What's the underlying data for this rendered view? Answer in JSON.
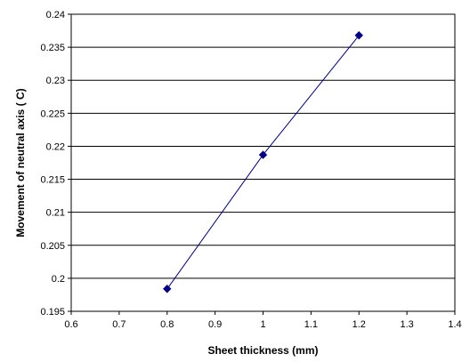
{
  "chart_data": {
    "type": "line",
    "title": "",
    "xlabel": "Sheet thickness (mm)",
    "ylabel": "Movement of neutral axis ( C)",
    "xlim": [
      0.6,
      1.4
    ],
    "ylim": [
      0.195,
      0.24
    ],
    "x_ticks": [
      "0.6",
      "0.7",
      "0.8",
      "0.9",
      "1",
      "1.1",
      "1.2",
      "1.3",
      "1.4"
    ],
    "y_ticks": [
      "0.195",
      "0.2",
      "0.205",
      "0.21",
      "0.215",
      "0.22",
      "0.225",
      "0.23",
      "0.235",
      "0.24"
    ],
    "grid": {
      "horizontal": true,
      "vertical": false
    },
    "legend": "none",
    "series": [
      {
        "x": [
          0.8,
          1.0,
          1.2
        ],
        "y": [
          0.1984,
          0.2187,
          0.2368
        ],
        "color": "#000080",
        "marker": "diamond"
      }
    ]
  }
}
